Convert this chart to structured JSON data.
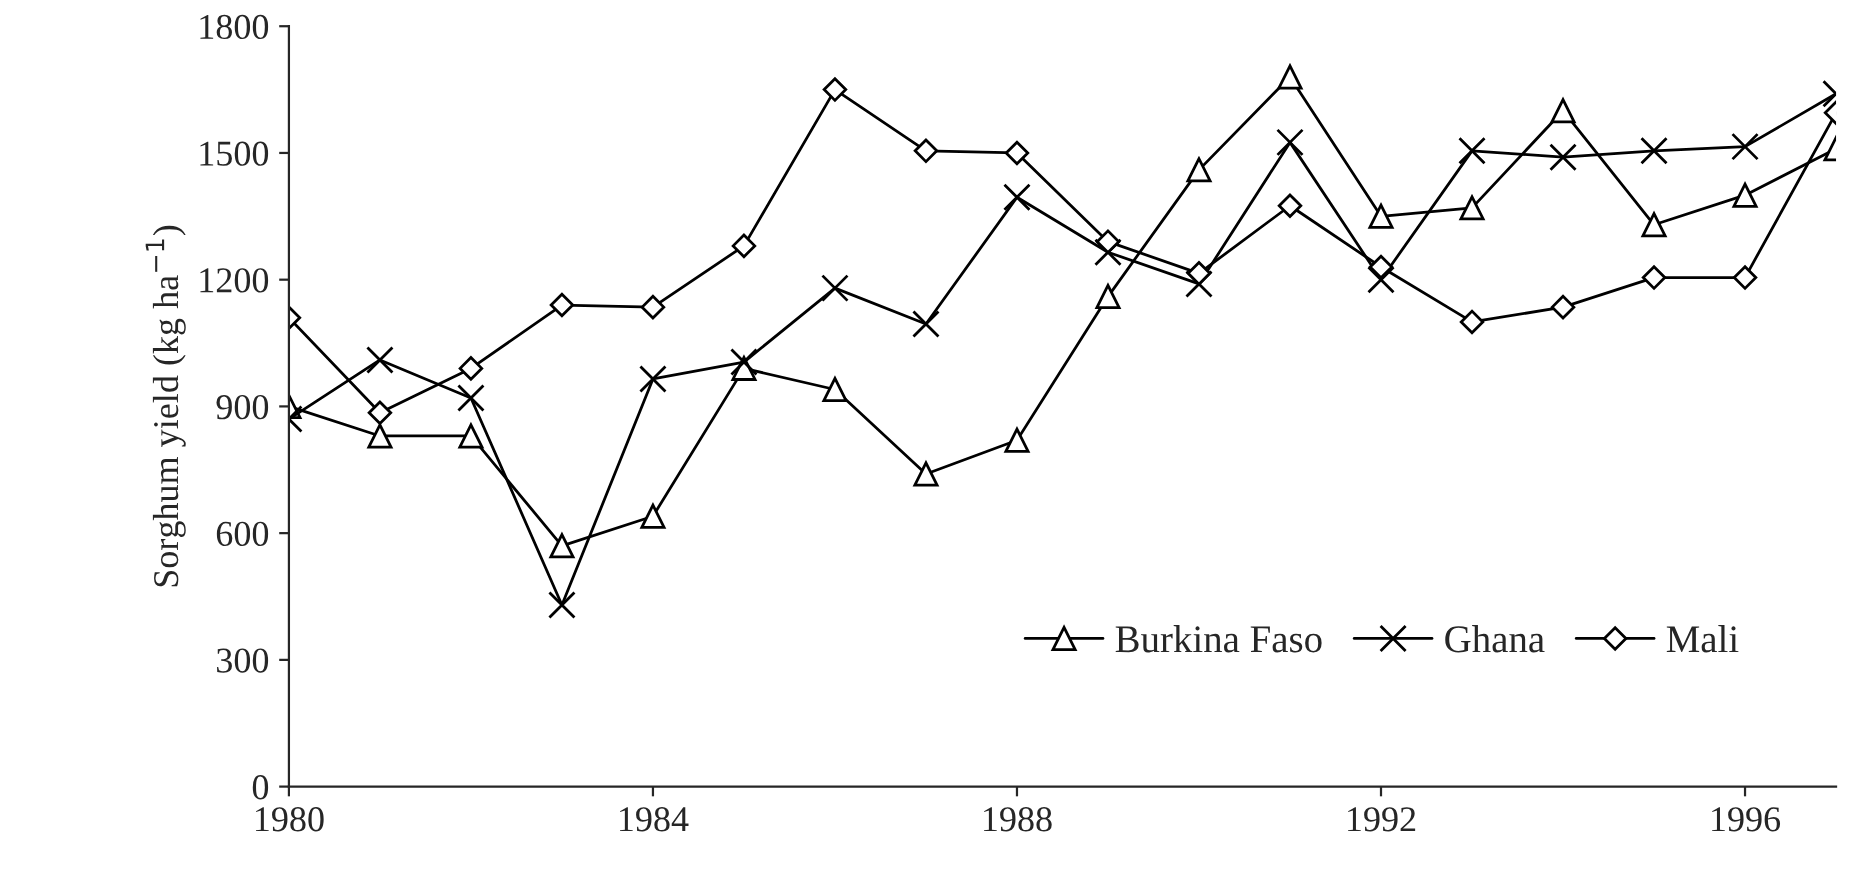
{
  "chart_data": {
    "type": "line",
    "ylabel": "Sorghum yield (kg ha$^{−1}$)",
    "x": [
      1980,
      1981,
      1982,
      1983,
      1984,
      1985,
      1986,
      1987,
      1988,
      1989,
      1990,
      1991,
      1992,
      1993,
      1994,
      1995,
      1996,
      1997
    ],
    "series": [
      {
        "name": "Burkina Faso",
        "color": "#000000",
        "marker": "triangle",
        "values": [
          900,
          830,
          830,
          570,
          640,
          990,
          940,
          740,
          820,
          1160,
          1460,
          1680,
          1350,
          1370,
          1600,
          1330,
          1400,
          1510
        ]
      },
      {
        "name": "Ghana",
        "color": "#000000",
        "marker": "cross",
        "values": [
          870,
          1010,
          920,
          430,
          965,
          1005,
          1180,
          1095,
          1395,
          1265,
          1190,
          1525,
          1200,
          1505,
          1490,
          1505,
          1515,
          1640
        ]
      },
      {
        "name": "Mali",
        "color": "#000000",
        "marker": "diamond",
        "values": [
          1110,
          885,
          990,
          1140,
          1135,
          1280,
          1650,
          1505,
          1500,
          1290,
          1215,
          1375,
          1230,
          1100,
          1135,
          1205,
          1205,
          1595
        ]
      }
    ],
    "xlim": [
      1980,
      1997
    ],
    "xticks": [
      1980,
      1984,
      1988,
      1992,
      1996
    ],
    "ylim": [
      0,
      1800
    ],
    "yticks": [
      0,
      300,
      600,
      900,
      1200,
      1500,
      1800
    ],
    "grid": false,
    "legend": "bottom right",
    "line_style": "solid"
  }
}
